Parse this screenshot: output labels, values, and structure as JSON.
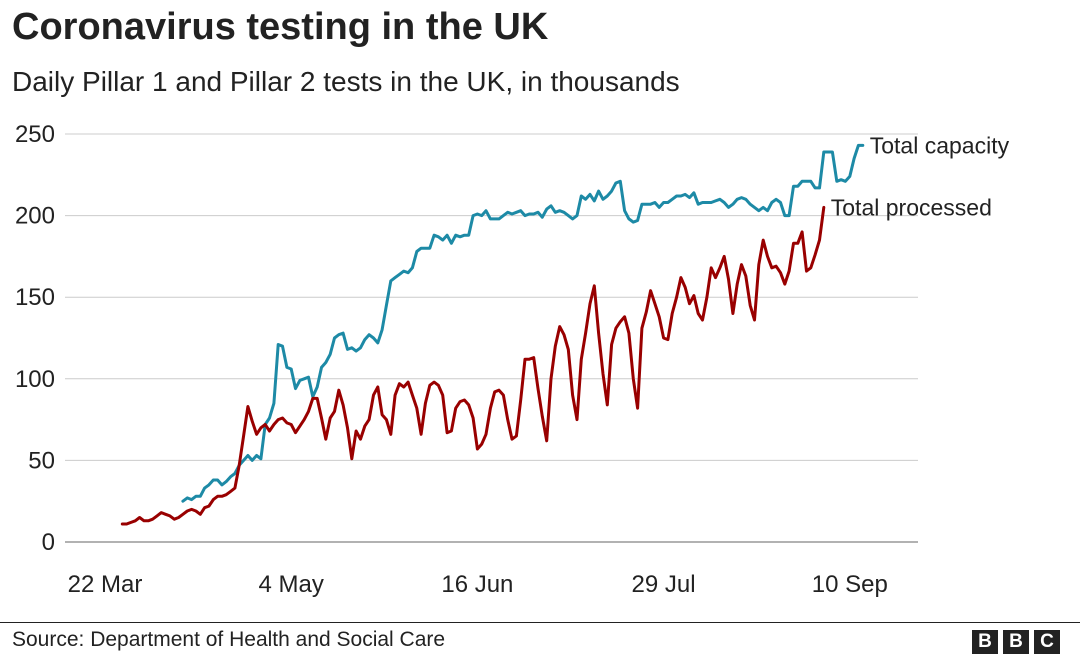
{
  "title": "Coronavirus testing in the UK",
  "subtitle": "Daily Pillar 1 and Pillar 2 tests in the UK, in thousands",
  "source": "Source: Department of Health and Social Care",
  "logo": [
    "B",
    "B",
    "C"
  ],
  "colors": {
    "capacity": "#1d8aa6",
    "processed": "#990000",
    "grid": "#cccccc",
    "text": "#222222"
  },
  "chart_data": {
    "type": "line",
    "title": "Coronavirus testing in the UK",
    "subtitle": "Daily Pillar 1 and Pillar 2 tests in the UK, in thousands",
    "xlabel": "",
    "ylabel": "",
    "x_start": "2020-03-26",
    "x_end": "2020-09-08",
    "x_ticks": [
      "22 Mar",
      "4 May",
      "16 Jun",
      "29 Jul",
      "10 Sep"
    ],
    "y_ticks": [
      0,
      50,
      100,
      150,
      200,
      250
    ],
    "ylim": [
      0,
      250
    ],
    "grid": true,
    "legend": "direct labels at line ends",
    "series": [
      {
        "name": "Total capacity",
        "start": "2020-04-09",
        "values": [
          25,
          27,
          26,
          28,
          28,
          33,
          35,
          38,
          38,
          35,
          37,
          40,
          42,
          47,
          50,
          53,
          50,
          53,
          51,
          72,
          76,
          85,
          121,
          120,
          107,
          106,
          94,
          99,
          100,
          101,
          89,
          95,
          107,
          110,
          115,
          125,
          127,
          128,
          118,
          119,
          117,
          119,
          124,
          127,
          125,
          122,
          130,
          145,
          160,
          162,
          164,
          166,
          165,
          168,
          178,
          180,
          180,
          180,
          188,
          187,
          185,
          188,
          183,
          188,
          187,
          188,
          188,
          200,
          201,
          200,
          203,
          198,
          198,
          198,
          200,
          202,
          201,
          202,
          203,
          200,
          201,
          201,
          202,
          199,
          204,
          206,
          202,
          203,
          202,
          200,
          198,
          200,
          212,
          210,
          213,
          209,
          215,
          210,
          212,
          215,
          220,
          221,
          203,
          198,
          196,
          197,
          207,
          207,
          207,
          208,
          205,
          208,
          208,
          210,
          212,
          212,
          213,
          211,
          214,
          207,
          208,
          208,
          208,
          209,
          210,
          208,
          205,
          207,
          210,
          211,
          210,
          207,
          205,
          203,
          205,
          203,
          208,
          210,
          208,
          200,
          200,
          218,
          218,
          221,
          221,
          221,
          217,
          217,
          239,
          239,
          239,
          221,
          222,
          221,
          224,
          235,
          243,
          243
        ]
      },
      {
        "name": "Total processed",
        "start": "2020-03-26",
        "values": [
          11,
          11,
          12,
          13,
          15,
          13,
          13,
          14,
          16,
          18,
          17,
          16,
          14,
          15,
          17,
          19,
          20,
          19,
          17,
          21,
          22,
          26,
          28,
          28,
          29,
          31,
          33,
          47,
          65,
          83,
          74,
          66,
          70,
          72,
          68,
          72,
          75,
          76,
          73,
          72,
          67,
          71,
          75,
          80,
          88,
          88,
          76,
          63,
          76,
          80,
          93,
          84,
          70,
          51,
          68,
          63,
          71,
          75,
          90,
          95,
          78,
          75,
          66,
          90,
          97,
          95,
          98,
          90,
          82,
          66,
          85,
          96,
          98,
          96,
          90,
          67,
          68,
          82,
          86,
          87,
          84,
          76,
          57,
          60,
          66,
          82,
          92,
          93,
          90,
          75,
          63,
          65,
          87,
          112,
          112,
          113,
          94,
          77,
          62,
          100,
          120,
          132,
          127,
          118,
          90,
          75,
          112,
          128,
          146,
          157,
          128,
          103,
          84,
          121,
          131,
          135,
          138,
          128,
          100,
          82,
          131,
          141,
          154,
          146,
          138,
          125,
          124,
          140,
          150,
          162,
          156,
          146,
          151,
          140,
          136,
          150,
          168,
          162,
          168,
          175,
          161,
          140,
          158,
          170,
          163,
          145,
          136,
          170,
          185,
          175,
          168,
          169,
          165,
          158,
          166,
          183,
          183,
          190,
          166,
          168,
          176,
          185,
          205
        ]
      }
    ]
  }
}
